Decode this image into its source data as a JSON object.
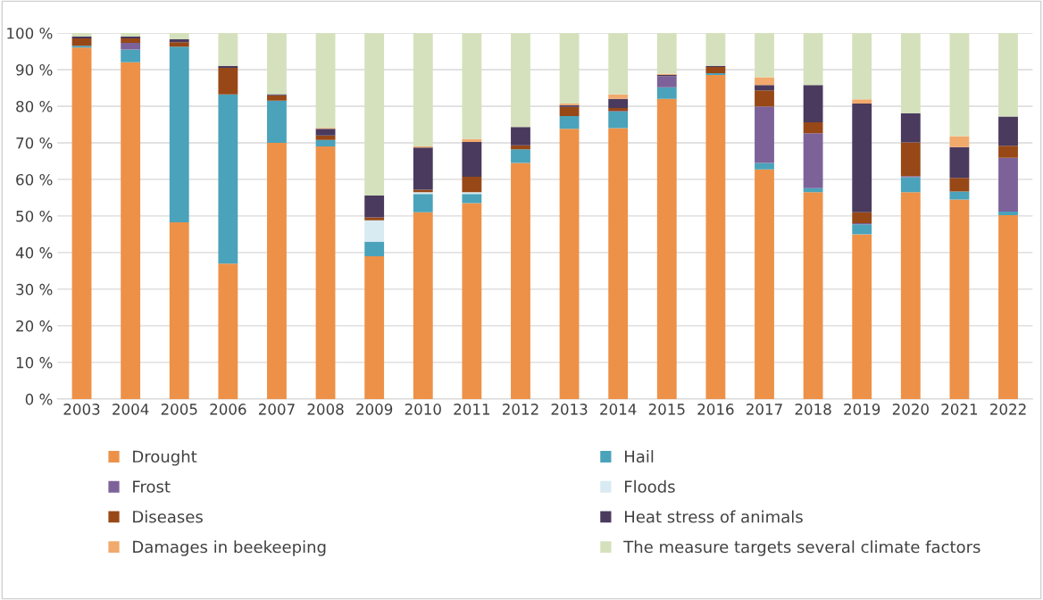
{
  "chart_data": {
    "type": "bar",
    "stacked": true,
    "categories": [
      "2003",
      "2004",
      "2005",
      "2006",
      "2007",
      "2008",
      "2009",
      "2010",
      "2011",
      "2012",
      "2013",
      "2014",
      "2015",
      "2016",
      "2017",
      "2018",
      "2019",
      "2020",
      "2021",
      "2022"
    ],
    "ylim": [
      0,
      100
    ],
    "yticks": [
      {
        "value": 0,
        "label": "0 %"
      },
      {
        "value": 10,
        "label": "10 %"
      },
      {
        "value": 20,
        "label": "20 %"
      },
      {
        "value": 30,
        "label": "30 %"
      },
      {
        "value": 40,
        "label": "40 %"
      },
      {
        "value": 50,
        "label": "50 %"
      },
      {
        "value": 60,
        "label": "60 %"
      },
      {
        "value": 70,
        "label": "70 %"
      },
      {
        "value": 80,
        "label": "80 %"
      },
      {
        "value": 90,
        "label": "90 %"
      },
      {
        "value": 100,
        "label": "100 %"
      }
    ],
    "grid": "y",
    "legend": "bottom",
    "series": [
      {
        "name": "Drought",
        "color": "#ed9148",
        "values": [
          96,
          92,
          48.3,
          37,
          70,
          69,
          39,
          51,
          53.5,
          64.5,
          73.8,
          74,
          82,
          88.5,
          62.7,
          56.5,
          45,
          56.5,
          54.5,
          50.2
        ]
      },
      {
        "name": "Hail",
        "color": "#4aa3ba",
        "values": [
          0.5,
          3.5,
          48,
          46.2,
          11.5,
          1.8,
          4,
          5,
          2.5,
          3.7,
          3.5,
          4.5,
          3.2,
          0.5,
          1.8,
          1.1,
          2.7,
          4.1,
          2.2,
          1
        ]
      },
      {
        "name": "Frost",
        "color": "#7c6299",
        "values": [
          0,
          1.8,
          0,
          0,
          0,
          0,
          0,
          0,
          0,
          0,
          0,
          0.2,
          3,
          0,
          15.4,
          15,
          0.3,
          0.3,
          0,
          14.7
        ]
      },
      {
        "name": "Floods",
        "color": "#d8eaf2",
        "values": [
          0,
          0,
          0,
          0,
          0,
          0,
          5.8,
          0.5,
          0.5,
          0,
          0,
          0,
          0,
          0,
          0,
          0,
          0,
          0,
          0,
          0
        ]
      },
      {
        "name": "Diseases",
        "color": "#974816",
        "values": [
          2,
          1.2,
          1.2,
          7.3,
          1.5,
          1.2,
          0.8,
          0.7,
          4.2,
          1.1,
          2.5,
          0.8,
          0,
          1.7,
          4.4,
          3,
          3,
          9.2,
          3.7,
          3.3
        ]
      },
      {
        "name": "Heat stress of animals",
        "color": "#4a3a5e",
        "values": [
          0.5,
          0.5,
          0.8,
          0.5,
          0.3,
          1.8,
          6,
          11.5,
          9.5,
          5,
          0.5,
          2.5,
          0.3,
          0.3,
          1.5,
          10.2,
          29.7,
          8,
          8.4,
          8
        ]
      },
      {
        "name": "Damages in beekeeping",
        "color": "#f1a96c",
        "values": [
          0,
          0,
          0,
          0,
          0,
          0.3,
          0,
          0.3,
          0.8,
          0,
          0.4,
          1.2,
          0.3,
          0,
          2.1,
          0,
          1.2,
          0,
          3,
          0
        ]
      },
      {
        "name": "The measure targets several climate factors",
        "color": "#d5e1bc",
        "values": [
          1,
          1,
          1.7,
          9,
          16.7,
          25.9,
          44.4,
          31,
          29,
          25.7,
          19.3,
          16.8,
          11.2,
          9,
          12.1,
          14.2,
          18.1,
          21.9,
          28.2,
          22.8
        ]
      }
    ]
  }
}
